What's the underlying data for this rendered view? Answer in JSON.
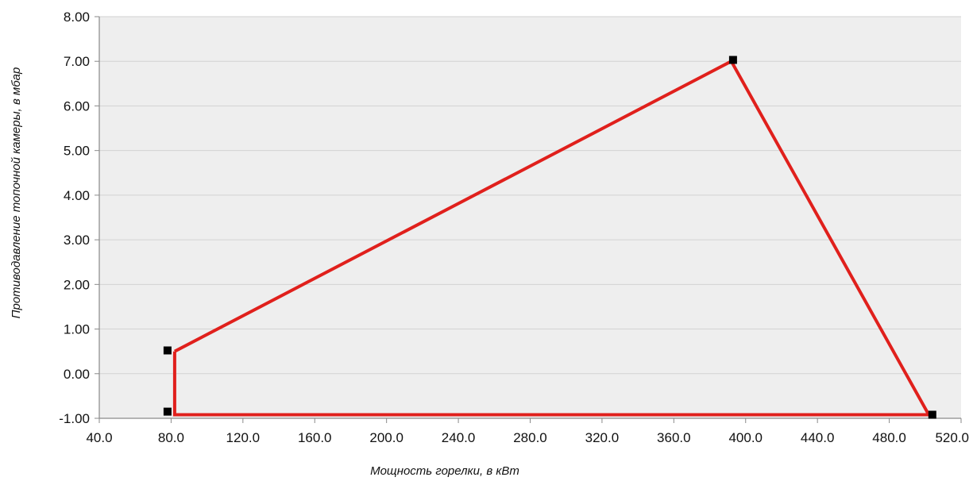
{
  "chart_data": {
    "type": "line",
    "title": "",
    "xlabel": "Мощность горелки, в кВт",
    "ylabel": "Противодавление топочной камеры, в мбар",
    "xlim": [
      40,
      520
    ],
    "ylim": [
      -1,
      8
    ],
    "x_ticks": [
      "40.0",
      "80.0",
      "120.0",
      "160.0",
      "200.0",
      "240.0",
      "280.0",
      "320.0",
      "360.0",
      "400.0",
      "440.0",
      "480.0",
      "520.0"
    ],
    "y_ticks": [
      "-1.00",
      "0.00",
      "1.00",
      "2.00",
      "3.00",
      "4.00",
      "5.00",
      "6.00",
      "7.00",
      "8.00"
    ],
    "grid": "horizontal",
    "legend": "none",
    "series": [
      {
        "points": [
          {
            "x": 82,
            "y": 0.5
          },
          {
            "x": 392,
            "y": 7.0
          },
          {
            "x": 502,
            "y": -0.92
          },
          {
            "x": 82,
            "y": -0.92
          },
          {
            "x": 82,
            "y": 0.5
          }
        ],
        "color": "#e0201c"
      }
    ],
    "markers": [
      {
        "x": 78,
        "y": 0.52
      },
      {
        "x": 78,
        "y": -0.85
      },
      {
        "x": 393,
        "y": 7.03
      },
      {
        "x": 504,
        "y": -0.92
      }
    ],
    "colors": {
      "plot_background": "#eeeeee",
      "gridline": "#d2d2d2",
      "axis": "#8a8a8a",
      "line": "#e0201c",
      "marker": "#000000"
    }
  }
}
